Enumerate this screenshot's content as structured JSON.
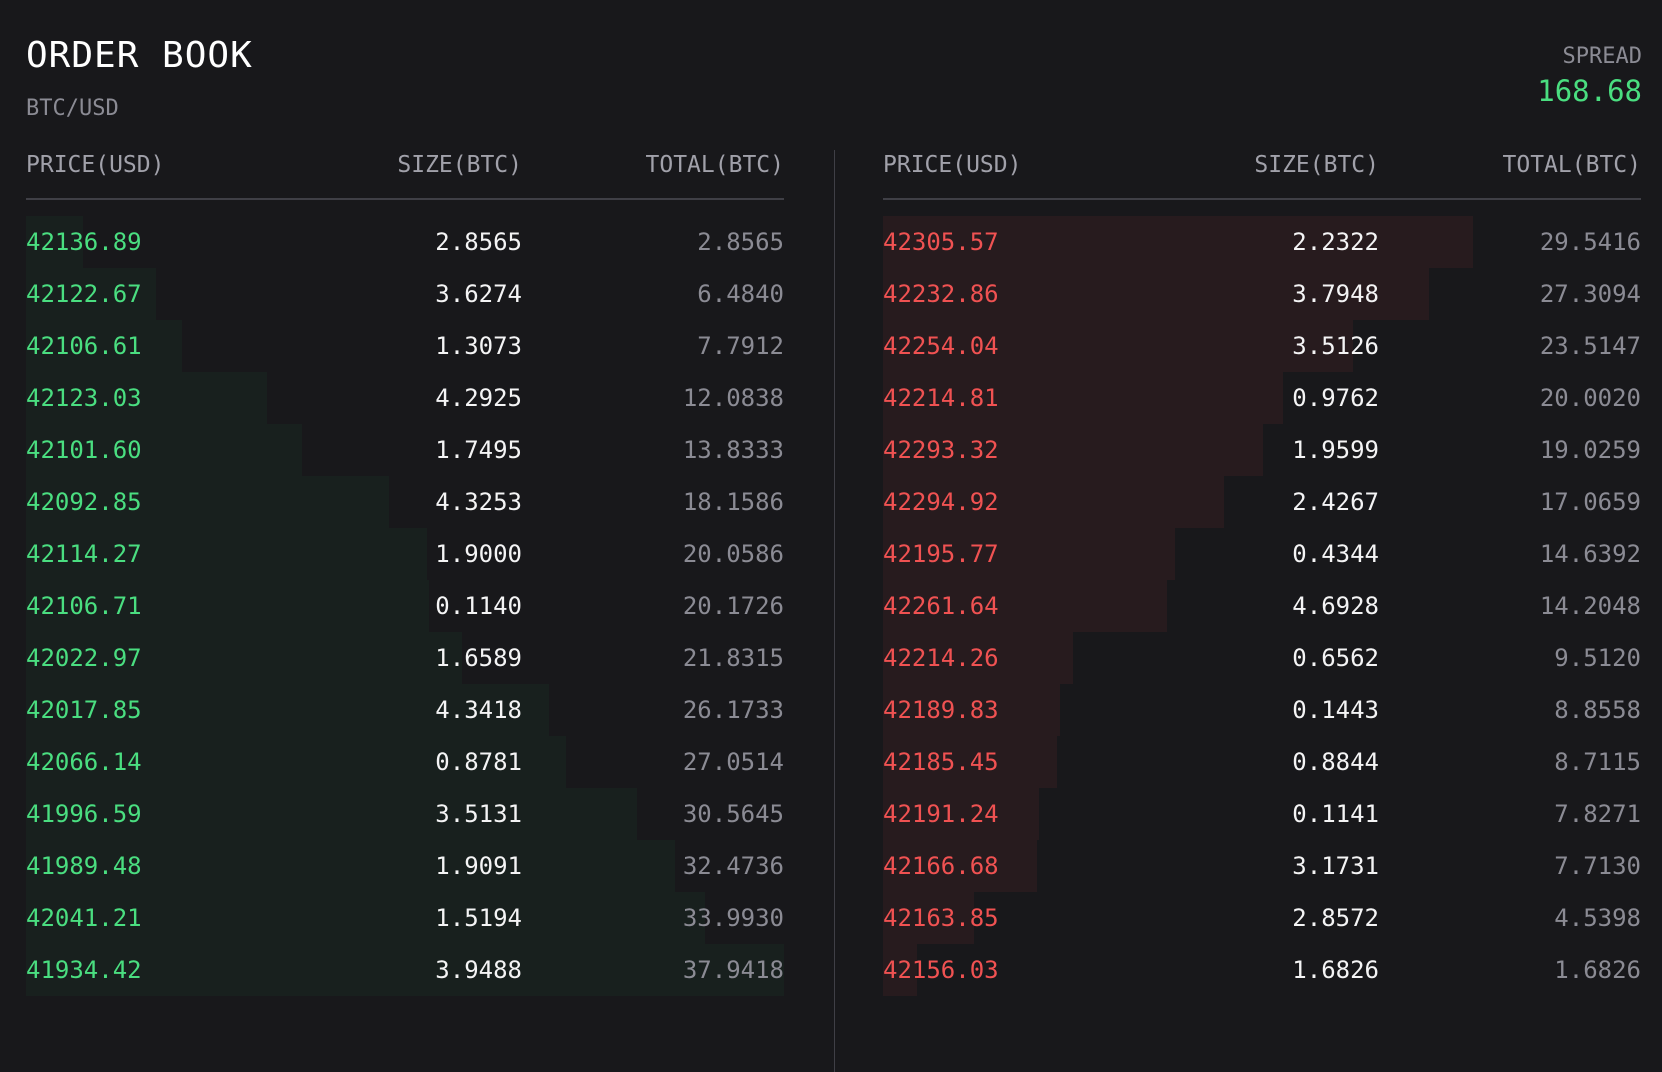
{
  "header": {
    "title": "ORDER BOOK",
    "pair": "BTC/USD",
    "spread_label": "SPREAD",
    "spread_value": "168.68"
  },
  "columns": {
    "price": "PRICE(USD)",
    "size": "SIZE(BTC)",
    "total": "TOTAL(BTC)"
  },
  "colors": {
    "bid": "#4ade80",
    "ask": "#f05252",
    "background": "#18181b"
  },
  "max_total": 37.9418,
  "bids": [
    {
      "price": "42136.89",
      "size": "2.8565",
      "total": "2.8565"
    },
    {
      "price": "42122.67",
      "size": "3.6274",
      "total": "6.4840"
    },
    {
      "price": "42106.61",
      "size": "1.3073",
      "total": "7.7912"
    },
    {
      "price": "42123.03",
      "size": "4.2925",
      "total": "12.0838"
    },
    {
      "price": "42101.60",
      "size": "1.7495",
      "total": "13.8333"
    },
    {
      "price": "42092.85",
      "size": "4.3253",
      "total": "18.1586"
    },
    {
      "price": "42114.27",
      "size": "1.9000",
      "total": "20.0586"
    },
    {
      "price": "42106.71",
      "size": "0.1140",
      "total": "20.1726"
    },
    {
      "price": "42022.97",
      "size": "1.6589",
      "total": "21.8315"
    },
    {
      "price": "42017.85",
      "size": "4.3418",
      "total": "26.1733"
    },
    {
      "price": "42066.14",
      "size": "0.8781",
      "total": "27.0514"
    },
    {
      "price": "41996.59",
      "size": "3.5131",
      "total": "30.5645"
    },
    {
      "price": "41989.48",
      "size": "1.9091",
      "total": "32.4736"
    },
    {
      "price": "42041.21",
      "size": "1.5194",
      "total": "33.9930"
    },
    {
      "price": "41934.42",
      "size": "3.9488",
      "total": "37.9418"
    }
  ],
  "asks": [
    {
      "price": "42305.57",
      "size": "2.2322",
      "total": "29.5416"
    },
    {
      "price": "42232.86",
      "size": "3.7948",
      "total": "27.3094"
    },
    {
      "price": "42254.04",
      "size": "3.5126",
      "total": "23.5147"
    },
    {
      "price": "42214.81",
      "size": "0.9762",
      "total": "20.0020"
    },
    {
      "price": "42293.32",
      "size": "1.9599",
      "total": "19.0259"
    },
    {
      "price": "42294.92",
      "size": "2.4267",
      "total": "17.0659"
    },
    {
      "price": "42195.77",
      "size": "0.4344",
      "total": "14.6392"
    },
    {
      "price": "42261.64",
      "size": "4.6928",
      "total": "14.2048"
    },
    {
      "price": "42214.26",
      "size": "0.6562",
      "total": "9.5120"
    },
    {
      "price": "42189.83",
      "size": "0.1443",
      "total": "8.8558"
    },
    {
      "price": "42185.45",
      "size": "0.8844",
      "total": "8.7115"
    },
    {
      "price": "42191.24",
      "size": "0.1141",
      "total": "7.8271"
    },
    {
      "price": "42166.68",
      "size": "3.1731",
      "total": "7.7130"
    },
    {
      "price": "42163.85",
      "size": "2.8572",
      "total": "4.5398"
    },
    {
      "price": "42156.03",
      "size": "1.6826",
      "total": "1.6826"
    }
  ]
}
